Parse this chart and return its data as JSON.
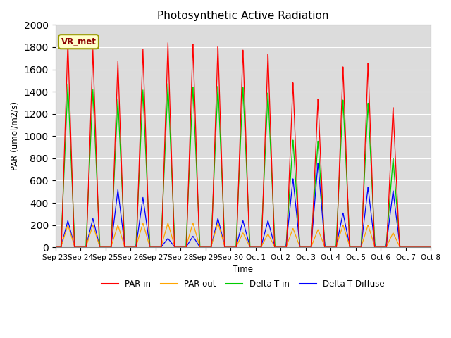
{
  "title": "Photosynthetic Active Radiation",
  "ylabel": "PAR (umol/m2/s)",
  "xlabel": "Time",
  "label_text": "VR_met",
  "ylim": [
    0,
    2000
  ],
  "background_color": "#dcdcdc",
  "tick_labels": [
    "Sep 23",
    "Sep 24",
    "Sep 25",
    "Sep 26",
    "Sep 27",
    "Sep 28",
    "Sep 29",
    "Sep 30",
    "Oct 1",
    "Oct 2",
    "Oct 3",
    "Oct 4",
    "Oct 5",
    "Oct 6",
    "Oct 7",
    "Oct 8"
  ],
  "num_days": 15,
  "par_in_peaks": [
    1850,
    1780,
    1680,
    1790,
    1850,
    1840,
    1820,
    1790,
    1750,
    1490,
    1340,
    1630,
    1660,
    1260
  ],
  "par_out_peaks": [
    200,
    200,
    200,
    220,
    220,
    220,
    220,
    130,
    120,
    170,
    160,
    200,
    200,
    130
  ],
  "delta_t_in_peaks": [
    1470,
    1420,
    1340,
    1420,
    1480,
    1450,
    1460,
    1450,
    1400,
    970,
    960,
    1330,
    1300,
    800
  ],
  "delta_t_diff_peaks": [
    240,
    260,
    520,
    450,
    80,
    100,
    260,
    240,
    240,
    620,
    760,
    310,
    540,
    510
  ],
  "peak_day_centers": [
    0.5,
    1.5,
    2.5,
    3.5,
    4.5,
    5.5,
    6.5,
    7.5,
    8.5,
    9.5,
    10.5,
    11.5,
    12.5,
    13.5
  ],
  "par_in_color": "#ff0000",
  "par_out_color": "#ffa500",
  "delta_t_in_color": "#00cc00",
  "delta_t_diff_color": "#0000ff",
  "par_in_label": "PAR in",
  "par_out_label": "PAR out",
  "delta_t_in_label": "Delta-T in",
  "delta_t_diff_label": "Delta-T Diffuse"
}
